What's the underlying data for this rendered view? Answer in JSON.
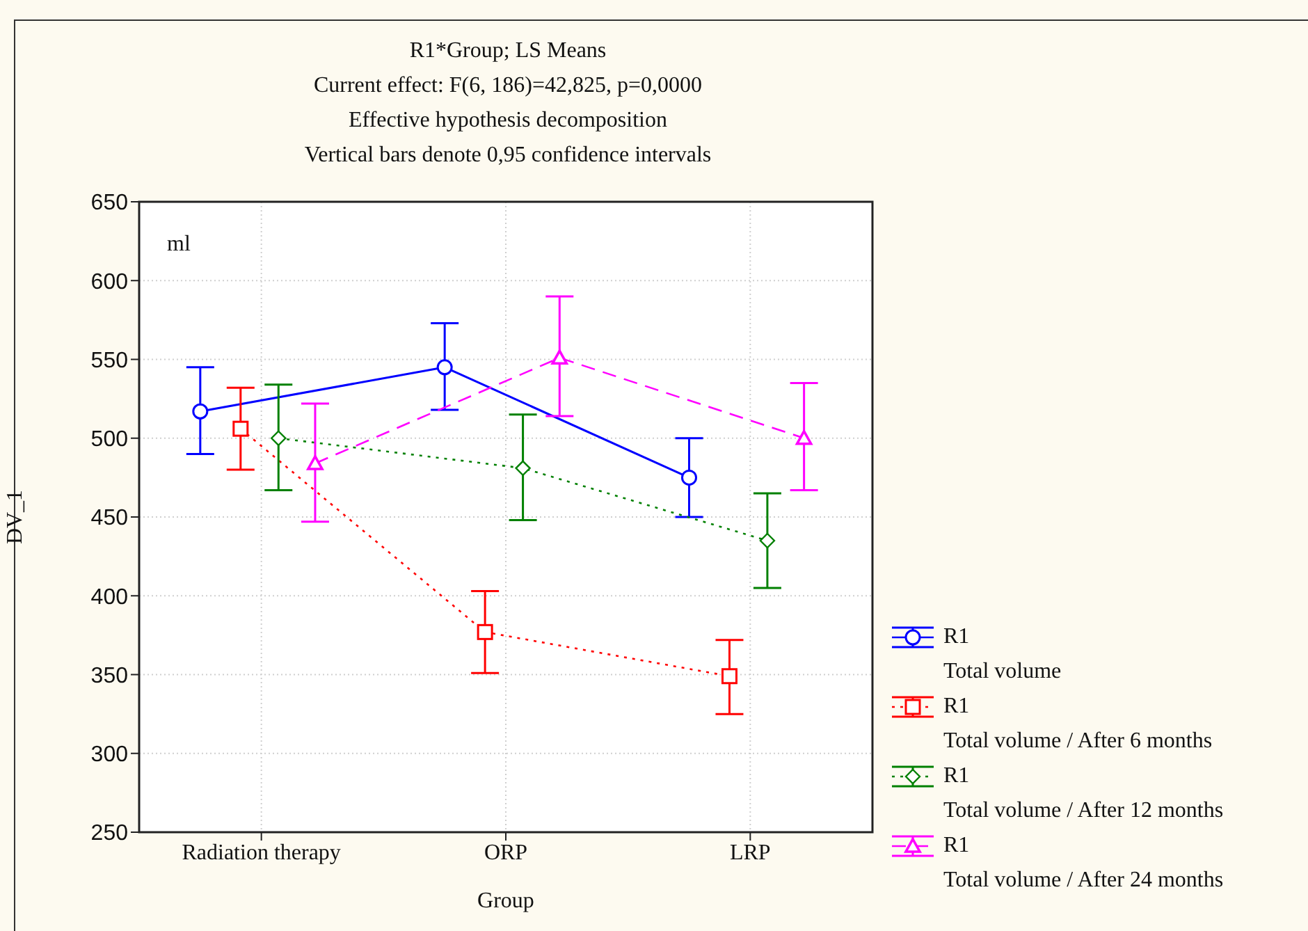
{
  "chart_data": {
    "type": "line",
    "title": "R1*Group; LS Means",
    "subtitle": "Current effect: F(6, 186)=42,825, p=0,0000\nEffective hypothesis decomposition\nVertical bars denote 0,95 confidence intervals",
    "xlabel": "Group",
    "ylabel": "DV_1",
    "annotations": [
      "ml"
    ],
    "categories": [
      "Radiation therapy",
      "ORP",
      "LRP"
    ],
    "series": [
      {
        "name": "R1\nTotal volume",
        "color": "#0000ff",
        "marker": "circle",
        "line_style": "solid",
        "values": [
          517,
          545,
          475
        ],
        "errors": [
          [
            490,
            545
          ],
          [
            518,
            573
          ],
          [
            450,
            500
          ]
        ]
      },
      {
        "name": "R1\nTotal volume / After 6 months",
        "color": "#ff0000",
        "marker": "square",
        "line_style": "dotted",
        "values": [
          506,
          377,
          349
        ],
        "errors": [
          [
            480,
            532
          ],
          [
            351,
            403
          ],
          [
            325,
            372
          ]
        ]
      },
      {
        "name": "R1\nTotal volume / After 12 months",
        "color": "#008000",
        "marker": "diamond",
        "line_style": "dotted",
        "values": [
          500,
          481,
          435
        ],
        "errors": [
          [
            467,
            534
          ],
          [
            448,
            515
          ],
          [
            405,
            465
          ]
        ]
      },
      {
        "name": "R1\nTotal volume / After 24 months",
        "color": "#ff00ff",
        "marker": "triangle",
        "line_style": "dashed",
        "values": [
          484,
          551,
          500
        ],
        "errors": [
          [
            447,
            522
          ],
          [
            514,
            590
          ],
          [
            467,
            535
          ]
        ]
      }
    ],
    "ylim": [
      250,
      650
    ],
    "yticks": [
      250,
      300,
      350,
      400,
      450,
      500,
      550,
      600,
      650
    ],
    "grid": true,
    "legend": "bottom right"
  }
}
